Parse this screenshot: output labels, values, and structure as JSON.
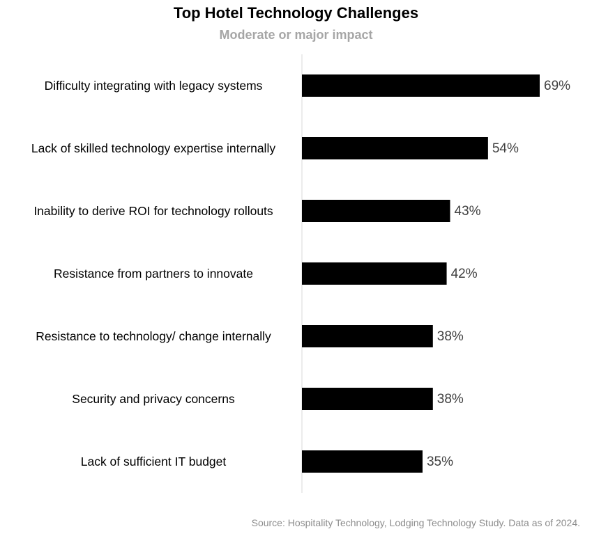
{
  "chart_data": {
    "type": "bar",
    "orientation": "horizontal",
    "title": "Top Hotel Technology Challenges",
    "subtitle": "Moderate or major impact",
    "categories": [
      "Difficulty integrating with legacy systems",
      "Lack of skilled technology expertise internally",
      "Inability to derive ROI for technology rollouts",
      "Resistance from partners to innovate",
      "Resistance to technology/ change internally",
      "Security and privacy concerns",
      "Lack of sufficient IT budget"
    ],
    "values": [
      69,
      54,
      43,
      42,
      38,
      38,
      35
    ],
    "value_labels": [
      "69%",
      "54%",
      "43%",
      "42%",
      "38%",
      "38%",
      "35%"
    ],
    "color": "#000000",
    "source": "Source: Hospitality Technology, Lodging Technology Study. Data as of 2024."
  }
}
